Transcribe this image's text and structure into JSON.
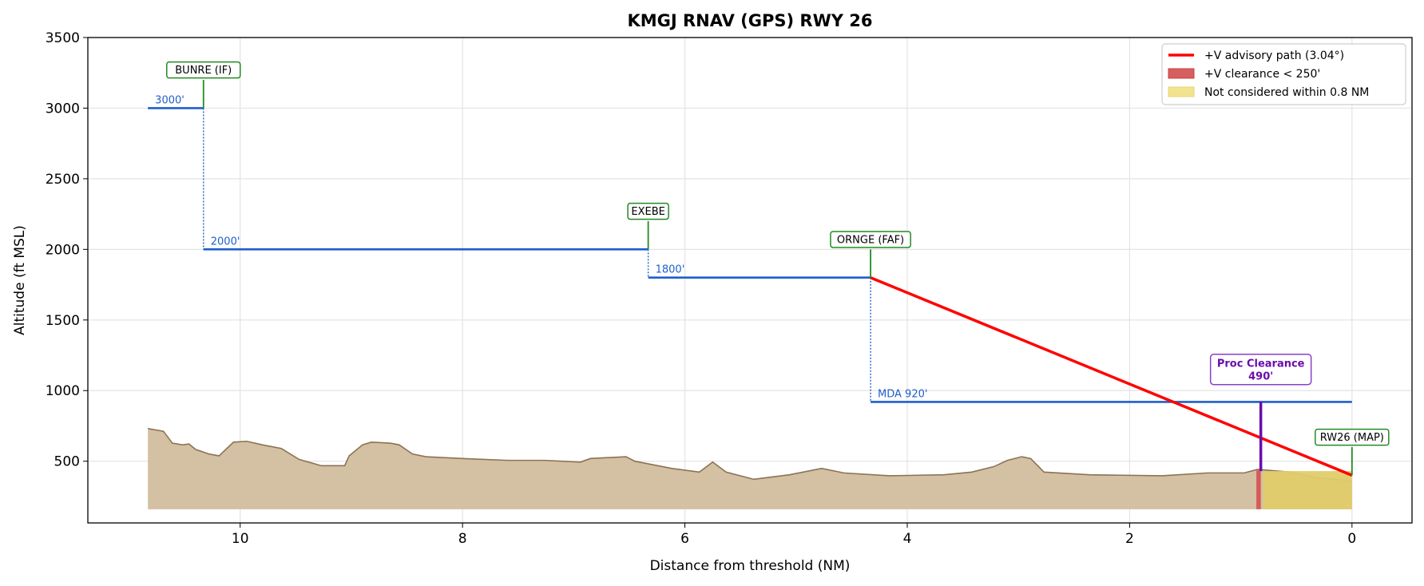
{
  "chart_data": {
    "type": "line",
    "title": "KMGJ  RNAV (GPS) RWY 26",
    "xlabel": "Distance from threshold (NM)",
    "ylabel": "Altitude (ft MSL)",
    "xlim": [
      11.37,
      -0.54
    ],
    "ylim": [
      63,
      3500
    ],
    "x_ticks": [
      10,
      8,
      6,
      4,
      2,
      0
    ],
    "y_ticks": [
      500,
      1000,
      1500,
      2000,
      2500,
      3000,
      3500
    ],
    "grid": true,
    "legend_position": "top-right",
    "legend": [
      {
        "label": "+V advisory path (3.04°)",
        "kind": "line",
        "color": "#ff0000"
      },
      {
        "label": "+V clearance < 250'",
        "kind": "patch",
        "color": "#d65f5f"
      },
      {
        "label": "Not considered within 0.8 NM",
        "kind": "patch",
        "color": "#f2e38f"
      }
    ],
    "colors": {
      "steps": "#1f5fcc",
      "fix": "#228b22",
      "advisory": "#ff0000",
      "terrain_fill": "#d4c0a2",
      "terrain_line": "#8b7355",
      "clearance": "#6a0dad",
      "red_band": "#d65050",
      "yellow_band": "#e0cc6a"
    },
    "terrain": {
      "base": 160,
      "x": [
        10.83,
        10.69,
        10.61,
        10.52,
        10.46,
        10.4,
        10.28,
        10.19,
        10.06,
        9.94,
        9.8,
        9.63,
        9.47,
        9.27,
        9.06,
        9.02,
        8.9,
        8.82,
        8.65,
        8.57,
        8.45,
        8.33,
        8.0,
        7.59,
        7.26,
        6.94,
        6.85,
        6.53,
        6.45,
        6.12,
        5.87,
        5.75,
        5.63,
        5.38,
        5.06,
        4.77,
        4.57,
        4.16,
        3.67,
        3.42,
        3.22,
        3.1,
        2.97,
        2.89,
        2.77,
        2.36,
        1.71,
        1.3,
        0.97,
        0.85,
        0.56,
        0.32,
        0.0
      ],
      "y": [
        731,
        712,
        628,
        616,
        622,
        583,
        551,
        538,
        635,
        641,
        616,
        590,
        513,
        468,
        468,
        538,
        616,
        635,
        628,
        616,
        551,
        532,
        519,
        506,
        506,
        494,
        519,
        532,
        500,
        449,
        423,
        494,
        423,
        372,
        404,
        449,
        417,
        397,
        404,
        423,
        462,
        506,
        532,
        519,
        423,
        404,
        397,
        417,
        417,
        442,
        423,
        385,
        359
      ]
    },
    "steps": [
      {
        "from": 10.83,
        "to": 10.33,
        "alt": 3000,
        "label": "3000'"
      },
      {
        "from": 10.33,
        "to": 6.33,
        "alt": 2000,
        "label": "2000'"
      },
      {
        "from": 6.33,
        "to": 4.33,
        "alt": 1800,
        "label": "1800'"
      },
      {
        "from": 4.33,
        "to": 0.0,
        "alt": 920,
        "label": "MDA 920'"
      }
    ],
    "fixes": [
      {
        "name": "BUNRE (IF)",
        "x": 10.33,
        "alt": 3000
      },
      {
        "name": "EXEBE",
        "x": 6.33,
        "alt": 2000
      },
      {
        "name": "ORNGE (FAF)",
        "x": 4.33,
        "alt": 1800
      },
      {
        "name": "RW26 (MAP)",
        "x": 0.0,
        "alt": 400
      }
    ],
    "advisory_path": {
      "x": [
        4.33,
        0.0
      ],
      "y": [
        1800,
        400
      ]
    },
    "red_band": {
      "from": 0.86,
      "to": 0.82
    },
    "yellow_band": {
      "from": 0.8,
      "to": 0.0
    },
    "proc_clearance": {
      "x": 0.82,
      "top": 920,
      "bottom": 430,
      "title": "Proc Clearance",
      "value": "490'"
    }
  }
}
